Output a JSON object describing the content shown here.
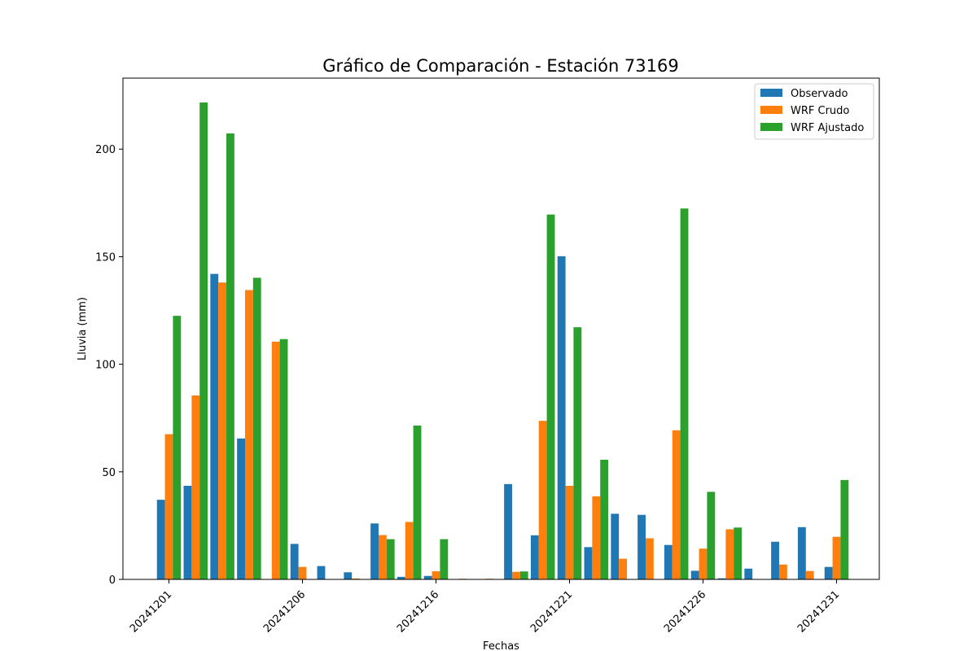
{
  "chart_data": {
    "type": "bar",
    "title": "Gráfico de Comparación - Estación 73169",
    "xlabel": "Fechas",
    "ylabel": "Lluvia (mm)",
    "ylim": [
      0,
      233
    ],
    "yticks": [
      0,
      50,
      100,
      150,
      200
    ],
    "legend_position": "top-right",
    "grid": false,
    "categories": [
      "20241201",
      "20241202",
      "20241203",
      "20241204",
      "20241205",
      "20241206",
      "20241207",
      "20241208",
      "20241209",
      "20241210",
      "20241216",
      "20241217",
      "20241218",
      "20241219",
      "20241220",
      "20241221",
      "20241222",
      "20241223",
      "20241224",
      "20241225",
      "20241226",
      "20241227",
      "20241228",
      "20241229",
      "20241230",
      "20241231"
    ],
    "xtick_labels": [
      {
        "category_index": 0,
        "label": "20241201"
      },
      {
        "category_index": 5,
        "label": "20241206"
      },
      {
        "category_index": 10,
        "label": "20241216"
      },
      {
        "category_index": 15,
        "label": "20241221"
      },
      {
        "category_index": 20,
        "label": "20241226"
      },
      {
        "category_index": 25,
        "label": "20241231"
      }
    ],
    "series": [
      {
        "name": "Observado",
        "color": "#1f77b4",
        "values": [
          37.0,
          43.5,
          142.0,
          65.5,
          0,
          16.5,
          6.2,
          3.3,
          26.0,
          1.2,
          1.6,
          0,
          0,
          44.3,
          20.5,
          150.2,
          15.0,
          30.5,
          30.0,
          16.0,
          4.0,
          0.5,
          5.0,
          17.5,
          24.3,
          5.8
        ]
      },
      {
        "name": "WRF Crudo",
        "color": "#ff7f0e",
        "values": [
          67.5,
          85.5,
          138.0,
          134.5,
          110.5,
          5.8,
          0,
          0.4,
          20.6,
          26.7,
          3.8,
          0.3,
          0.3,
          3.5,
          73.7,
          43.5,
          38.6,
          9.6,
          19.1,
          69.3,
          14.3,
          23.3,
          0,
          6.9,
          3.9,
          19.8
        ]
      },
      {
        "name": "WRF Ajustado",
        "color": "#2ca02c",
        "values": [
          122.5,
          221.7,
          207.3,
          140.2,
          111.7,
          0,
          0,
          0,
          18.7,
          71.5,
          18.7,
          0,
          0,
          3.7,
          169.6,
          117.2,
          55.6,
          0,
          0,
          172.4,
          40.7,
          24.1,
          0,
          0,
          0,
          46.2
        ]
      }
    ]
  }
}
